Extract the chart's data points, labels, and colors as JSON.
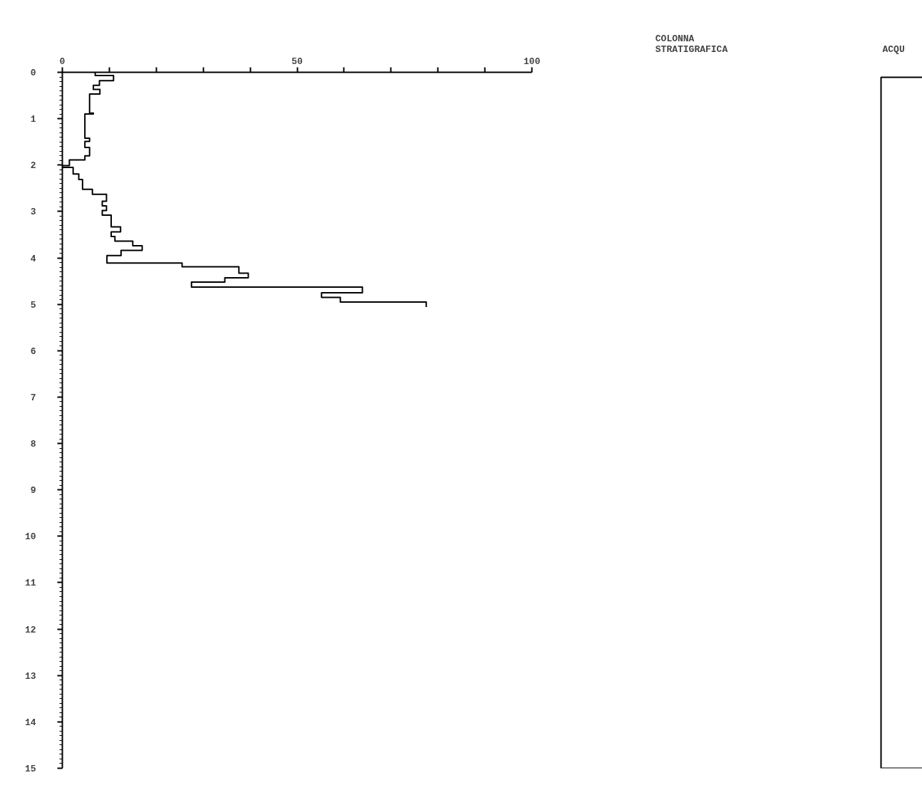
{
  "chart_data": [
    {
      "type": "step",
      "orientation": "horizontal",
      "color": "#000000",
      "line_style": "solid",
      "x": [
        0,
        0.07,
        0.18,
        0.28,
        0.37,
        0.47,
        0.88,
        0.9,
        1.42,
        1.49,
        1.62,
        1.8,
        1.89,
        2.01,
        2.05,
        2.19,
        2.31,
        2.52,
        2.63,
        2.78,
        2.88,
        2.98,
        3.08,
        3.33,
        3.44,
        3.54,
        3.64,
        3.74,
        3.84,
        3.95,
        4.11,
        4.19,
        4.33,
        4.43,
        4.52,
        4.63,
        4.75,
        4.85,
        4.95,
        5.06
      ],
      "values": [
        7.0,
        10.9,
        7.9,
        6.6,
        8.0,
        5.8,
        6.6,
        4.8,
        5.8,
        4.8,
        5.8,
        4.8,
        1.5,
        0,
        2.3,
        3.5,
        4.3,
        6.4,
        9.4,
        8.5,
        9.4,
        8.5,
        10.4,
        12.4,
        10.4,
        11.2,
        15.0,
        17.0,
        12.5,
        9.5,
        25.5,
        37.6,
        39.6,
        34.6,
        27.5,
        63.9,
        55.2,
        59.2,
        77.5,
        77.5
      ],
      "xlim": [
        0,
        100
      ],
      "xticks": [
        0,
        {
          "value": 10,
          "label": null
        },
        {
          "value": 20,
          "label": null
        },
        {
          "value": 30,
          "label": null
        },
        {
          "value": 40,
          "label": null
        },
        50,
        {
          "value": 60,
          "label": null
        },
        {
          "value": 70,
          "label": null
        },
        {
          "value": 80,
          "label": null
        },
        {
          "value": 90,
          "label": null
        },
        100
      ],
      "ylim": [
        15,
        0
      ],
      "yticks": [
        0,
        1,
        2,
        3,
        4,
        5,
        6,
        7,
        8,
        9,
        10,
        11,
        12,
        13,
        14,
        15
      ]
    },
    {
      "type": "other",
      "title": "COLONNA\nSTRATIGRAFICA"
    },
    {
      "type": "other",
      "title": "ACQU"
    }
  ]
}
